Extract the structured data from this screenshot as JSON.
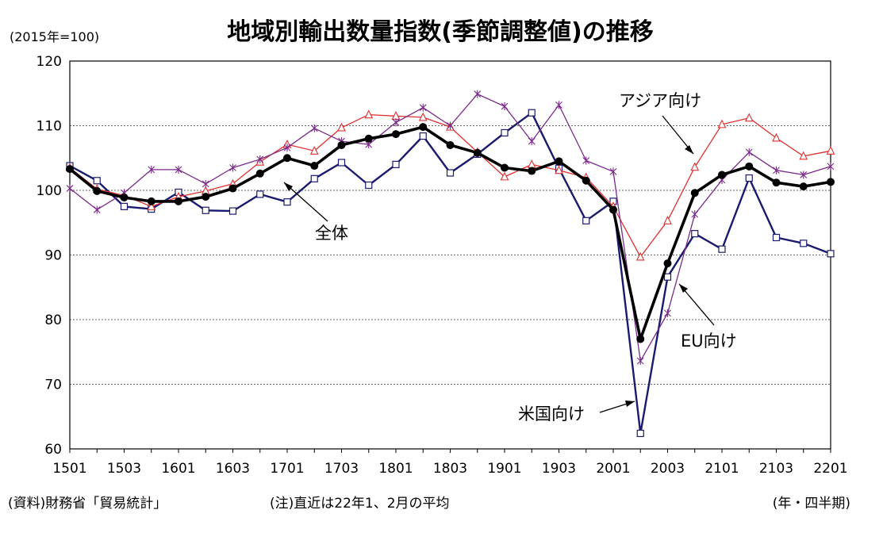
{
  "chart_data": {
    "type": "line",
    "title": "地域別輸出数量指数(季節調整値)の推移",
    "unit_label": "(2015年=100)",
    "xlabel": "",
    "ylabel": "",
    "ylim": [
      60,
      120
    ],
    "yticks": [
      60,
      70,
      80,
      90,
      100,
      110,
      120
    ],
    "grid": true,
    "categories": [
      "1501",
      "1502",
      "1503",
      "1504",
      "1601",
      "1602",
      "1603",
      "1604",
      "1701",
      "1702",
      "1703",
      "1704",
      "1801",
      "1802",
      "1803",
      "1804",
      "1901",
      "1902",
      "1903",
      "1904",
      "2001",
      "2002",
      "2003",
      "2004",
      "2101",
      "2102",
      "2103",
      "2104",
      "2201"
    ],
    "x_tick_labels": [
      "1501",
      "1503",
      "1601",
      "1603",
      "1701",
      "1703",
      "1801",
      "1803",
      "1901",
      "1903",
      "2001",
      "2003",
      "2101",
      "2103",
      "2201"
    ],
    "series": [
      {
        "name": "全体",
        "color": "#000000",
        "marker": "dot",
        "values": [
          103.3,
          99.9,
          98.9,
          98.3,
          98.3,
          99.0,
          100.3,
          102.6,
          105.0,
          103.8,
          107.0,
          108.0,
          108.7,
          109.8,
          107.0,
          105.8,
          103.5,
          103.0,
          104.5,
          101.5,
          97.0,
          77.0,
          88.7,
          99.6,
          102.4,
          103.7,
          101.2,
          100.6,
          101.3
        ]
      },
      {
        "name": "米国向け",
        "color": "#1a1a6e",
        "marker": "square",
        "values": [
          103.8,
          101.5,
          97.5,
          97.1,
          99.7,
          96.9,
          96.8,
          99.4,
          98.2,
          101.8,
          104.3,
          100.8,
          104.0,
          108.4,
          102.7,
          105.6,
          108.9,
          112.0,
          103.4,
          95.3,
          98.3,
          62.4,
          86.6,
          93.3,
          90.9,
          101.9,
          92.7,
          91.8,
          90.2
        ]
      },
      {
        "name": "アジア向け",
        "color": "#e03030",
        "marker": "triangle",
        "values": [
          103.5,
          100.2,
          99.2,
          97.5,
          99.0,
          99.9,
          101.0,
          104.4,
          107.1,
          106.1,
          109.7,
          111.7,
          111.5,
          111.3,
          109.8,
          105.9,
          102.1,
          104.0,
          103.1,
          102.0,
          97.5,
          89.7,
          95.3,
          103.6,
          110.2,
          111.2,
          108.1,
          105.3,
          106.1
        ]
      },
      {
        "name": "EU向け",
        "color": "#7a2a8a",
        "marker": "x",
        "values": [
          100.3,
          97.0,
          99.6,
          103.2,
          103.2,
          101.0,
          103.5,
          104.8,
          106.6,
          109.6,
          107.6,
          107.1,
          110.5,
          112.8,
          110.0,
          114.9,
          113.0,
          107.6,
          113.2,
          104.6,
          102.9,
          73.6,
          81.0,
          96.3,
          101.6,
          105.9,
          103.1,
          102.4,
          103.7
        ]
      }
    ],
    "annotations": [
      "アジア向け",
      "全体",
      "EU向け",
      "米国向け"
    ]
  },
  "footer": {
    "source": "(資料)財務省「貿易統計」",
    "note": "(注)直近は22年1、2月の平均",
    "period": "(年・四半期)"
  }
}
